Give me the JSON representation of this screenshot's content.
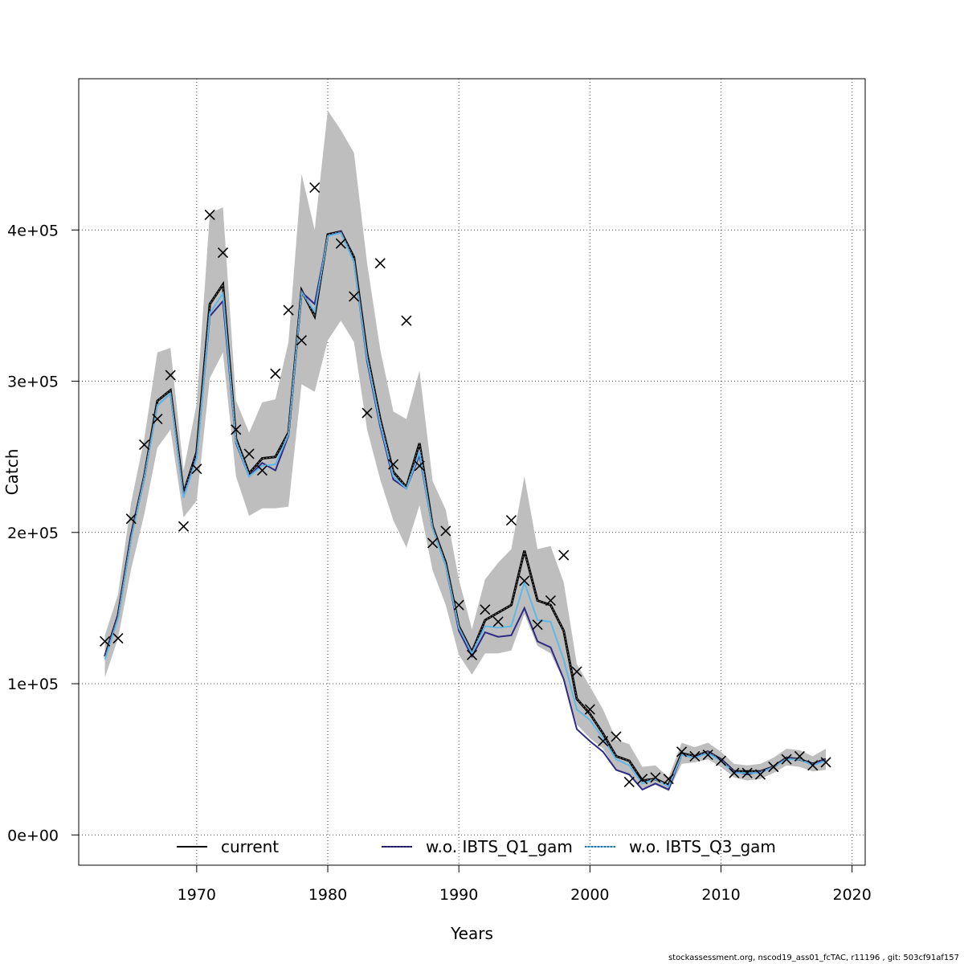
{
  "footer": "stockassessment.org, nscod19_ass01_fcTAC, r11196 , git: 503cf91af157",
  "colors": {
    "band": "#bebebe",
    "current": "#000000",
    "wo_q1": "#2e2a85",
    "wo_q3": "#5fb8e8",
    "observed": "#000000",
    "grid": "#555555"
  },
  "chart_data": {
    "type": "line",
    "title": "",
    "xlabel": "Years",
    "ylabel": "Catch",
    "xlim": [
      1961,
      2021
    ],
    "ylim": [
      -20000,
      500000
    ],
    "grid": true,
    "legend_position": "bottom",
    "xticks": [
      1970,
      1980,
      1990,
      2000,
      2010,
      2020
    ],
    "xtick_labels": [
      "1970",
      "1980",
      "1990",
      "2000",
      "2010",
      "2020"
    ],
    "yticks": [
      0,
      100000,
      200000,
      300000,
      400000
    ],
    "ytick_labels": [
      "0e+00",
      "1e+05",
      "2e+05",
      "3e+05",
      "4e+05"
    ],
    "x": [
      1963,
      1964,
      1965,
      1966,
      1967,
      1968,
      1969,
      1970,
      1971,
      1972,
      1973,
      1974,
      1975,
      1976,
      1977,
      1978,
      1979,
      1980,
      1981,
      1982,
      1983,
      1984,
      1985,
      1986,
      1987,
      1988,
      1989,
      1990,
      1991,
      1992,
      1993,
      1994,
      1995,
      1996,
      1997,
      1998,
      1999,
      2000,
      2001,
      2002,
      2003,
      2004,
      2005,
      2006,
      2007,
      2008,
      2009,
      2010,
      2011,
      2012,
      2013,
      2014,
      2015,
      2016,
      2017,
      2018
    ],
    "band": {
      "upper": [
        132000,
        159000,
        220000,
        262000,
        319000,
        322000,
        241000,
        285000,
        411000,
        415000,
        287000,
        266000,
        286000,
        288000,
        326000,
        437000,
        400000,
        479000,
        466000,
        451000,
        378000,
        321000,
        280000,
        275000,
        307000,
        234000,
        215000,
        169000,
        136000,
        169000,
        180000,
        189000,
        237000,
        189000,
        191000,
        167000,
        113000,
        98000,
        83000,
        63000,
        60000,
        45000,
        46000,
        38000,
        61000,
        58000,
        61000,
        55000,
        47000,
        46000,
        47000,
        51000,
        57000,
        56000,
        52000,
        57000
      ],
      "lower": [
        104000,
        130000,
        176000,
        212000,
        256000,
        268000,
        210000,
        221000,
        302000,
        319000,
        237000,
        211000,
        216000,
        216000,
        217000,
        298000,
        293000,
        327000,
        340000,
        326000,
        268000,
        235000,
        208000,
        190000,
        218000,
        175000,
        152000,
        119000,
        106000,
        120000,
        120000,
        122000,
        146000,
        125000,
        120000,
        102000,
        73000,
        64000,
        57000,
        43000,
        39000,
        31000,
        33000,
        29000,
        47000,
        48000,
        50000,
        45000,
        38000,
        36000,
        37000,
        41000,
        46000,
        45000,
        42000,
        43000
      ]
    },
    "series": [
      {
        "name": "current",
        "values": [
          118000,
          145000,
          198000,
          237000,
          287000,
          294000,
          226000,
          253000,
          351000,
          364000,
          262000,
          239000,
          249000,
          250000,
          266000,
          360000,
          343000,
          397000,
          399000,
          382000,
          318000,
          275000,
          240000,
          230000,
          259000,
          204000,
          180000,
          138000,
          121000,
          142000,
          147000,
          152000,
          188000,
          155000,
          152000,
          135000,
          90000,
          80000,
          67000,
          52000,
          49000,
          36000,
          37000,
          33000,
          54000,
          52000,
          55000,
          50000,
          42000,
          42000,
          42000,
          45000,
          51000,
          50000,
          47000,
          50000
        ]
      },
      {
        "name": "w.o. IBTS_Q1_gam",
        "values": [
          118000,
          145000,
          198000,
          237000,
          284000,
          292000,
          224000,
          250000,
          343000,
          353000,
          259000,
          237000,
          246000,
          241000,
          264000,
          359000,
          351000,
          396000,
          399000,
          379000,
          313000,
          270000,
          235000,
          229000,
          251000,
          203000,
          178000,
          135000,
          118000,
          134000,
          131000,
          132000,
          150000,
          128000,
          124000,
          103000,
          70000,
          62000,
          55000,
          43000,
          40000,
          30000,
          34000,
          30000,
          53000,
          51000,
          55000,
          50000,
          42000,
          40000,
          42000,
          45000,
          51000,
          50000,
          47000,
          50000
        ]
      },
      {
        "name": "w.o. IBTS_Q3_gam",
        "values": [
          116000,
          143000,
          196000,
          236000,
          284000,
          292000,
          223000,
          249000,
          345000,
          358000,
          260000,
          237000,
          244000,
          245000,
          265000,
          359000,
          346000,
          396000,
          398000,
          379000,
          315000,
          272000,
          237000,
          229000,
          253000,
          203000,
          178000,
          137000,
          120000,
          138000,
          137000,
          138000,
          167000,
          142000,
          141000,
          116000,
          83000,
          76000,
          64000,
          50000,
          46000,
          34000,
          37000,
          32000,
          53000,
          51000,
          54000,
          49000,
          41000,
          41000,
          41000,
          45000,
          50000,
          50000,
          46000,
          49000
        ]
      }
    ],
    "observed": {
      "values": [
        128000,
        130000,
        209000,
        258000,
        275000,
        304000,
        204000,
        242000,
        410000,
        385000,
        268000,
        252000,
        241000,
        305000,
        347000,
        327000,
        428000,
        null,
        391000,
        356000,
        279000,
        378000,
        245000,
        340000,
        244000,
        193000,
        201000,
        152000,
        119000,
        149000,
        141000,
        208000,
        168000,
        139000,
        155000,
        185000,
        108000,
        83000,
        62000,
        65000,
        35000,
        37000,
        38000,
        37000,
        55000,
        52000,
        53000,
        49000,
        41000,
        41000,
        40000,
        45000,
        50000,
        52000,
        46000,
        48000
      ]
    },
    "legend": [
      {
        "label": "current",
        "style": "solid"
      },
      {
        "label": "w.o. IBTS_Q1_gam",
        "style": "dashed-dark"
      },
      {
        "label": "w.o. IBTS_Q3_gam",
        "style": "dotted-light"
      }
    ]
  }
}
